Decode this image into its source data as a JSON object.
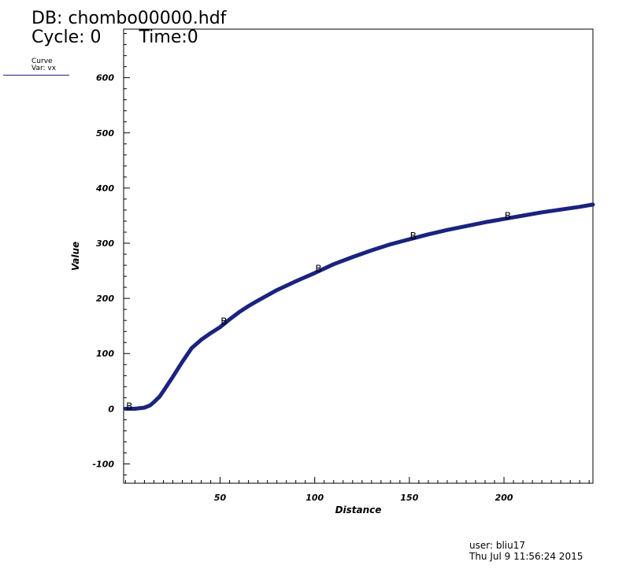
{
  "header": {
    "db_label": "DB: chombo00000.hdf",
    "cycle_label": "Cycle: 0",
    "time_label": "Time:0"
  },
  "legend": {
    "plot_type": "Curve",
    "var_label": "Var: vx",
    "color": "#1a237e"
  },
  "footer": {
    "user": "user: bliu17",
    "date": "Thu Jul  9 11:56:24 2015"
  },
  "chart_data": {
    "type": "line",
    "title": "",
    "xlabel": "Distance",
    "ylabel": "Value",
    "xlim": [
      -1,
      247
    ],
    "ylim": [
      -135,
      688
    ],
    "x_ticks": [
      50,
      100,
      150,
      200
    ],
    "y_ticks": [
      -100,
      0,
      100,
      200,
      300,
      400,
      500,
      600
    ],
    "x_minor_step": 5,
    "y_minor_step": 20,
    "grid": false,
    "series": [
      {
        "color": "#1a237e",
        "marker_label": "B",
        "markers_x": [
          2,
          52,
          102,
          152,
          202
        ],
        "x": [
          0,
          5,
          10,
          13,
          15,
          18,
          20,
          25,
          30,
          35,
          40,
          45,
          50,
          55,
          60,
          65,
          70,
          80,
          90,
          100,
          110,
          120,
          130,
          140,
          150,
          160,
          170,
          180,
          190,
          200,
          210,
          220,
          230,
          240,
          247
        ],
        "y": [
          0,
          0,
          2,
          6,
          12,
          22,
          32,
          58,
          85,
          110,
          125,
          137,
          148,
          162,
          175,
          186,
          196,
          215,
          231,
          246,
          262,
          275,
          287,
          298,
          307,
          316,
          324,
          331,
          338,
          344,
          350,
          356,
          361,
          366,
          370
        ]
      }
    ]
  }
}
